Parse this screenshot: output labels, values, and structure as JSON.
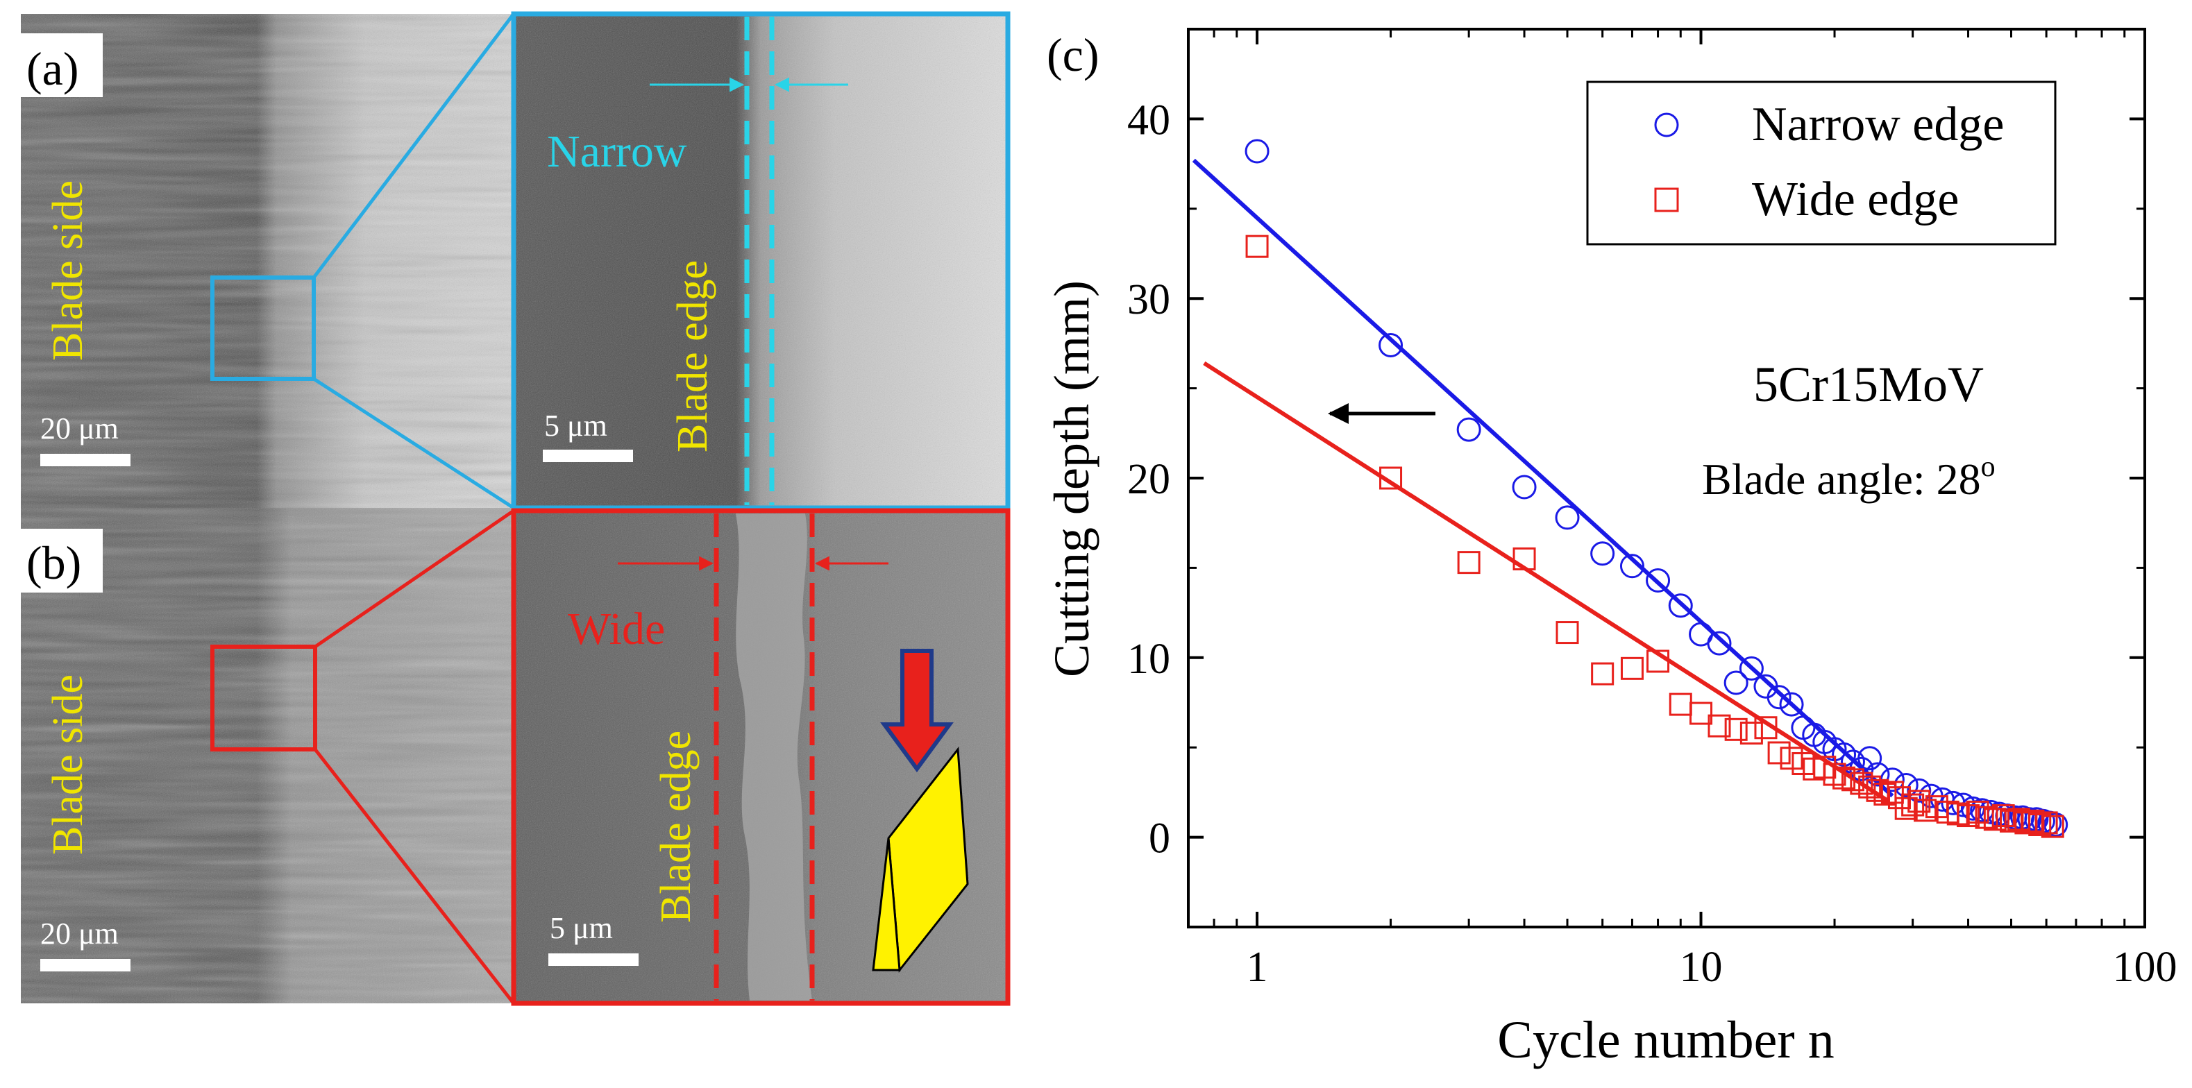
{
  "panels": {
    "a": {
      "label": "(a)",
      "side_label": "Blade side",
      "scale_main": "20 μm",
      "scale_zoom": "5 μm",
      "narrow_label": "Narrow",
      "edge_label": "Blade edge",
      "frame_color": "#29abe2"
    },
    "b": {
      "label": "(b)",
      "side_label": "Blade side",
      "scale_main": "20 μm",
      "scale_zoom": "5 μm",
      "wide_label": "Wide",
      "edge_label": "Blade edge",
      "frame_color": "#e8211c"
    }
  },
  "chart_data": {
    "type": "scatter",
    "panel_label": "(c)",
    "xlabel": "Cycle number n",
    "ylabel": "Cutting depth (mm)",
    "xscale": "log",
    "xlim": [
      0.7,
      100
    ],
    "ylim": [
      -5,
      45
    ],
    "xticks": [
      1,
      10,
      100
    ],
    "xtick_labels": [
      "1",
      "10",
      "100"
    ],
    "yticks": [
      0,
      10,
      20,
      30,
      40
    ],
    "ytick_labels": [
      "0",
      "10",
      "20",
      "30",
      "40"
    ],
    "annotation_material": "5Cr15MoV",
    "annotation_angle": "Blade angle: 28",
    "annotation_angle_sup": "o",
    "legend_position": "top-right",
    "series": [
      {
        "name": "Narrow edge",
        "marker": "circle",
        "color": "#1a1ae6",
        "x": [
          1,
          2,
          3,
          4,
          5,
          6,
          7,
          8,
          9,
          10,
          11,
          12,
          13,
          14,
          15,
          16,
          17,
          18,
          19,
          20,
          21,
          22,
          23,
          24,
          25,
          27,
          29,
          31,
          33,
          35,
          37,
          39,
          41,
          43,
          45,
          47,
          49,
          51,
          53,
          55,
          57,
          59,
          61,
          63
        ],
        "values": [
          38.2,
          27.4,
          22.7,
          19.5,
          17.8,
          15.8,
          15.1,
          14.3,
          12.9,
          11.3,
          10.8,
          8.6,
          9.4,
          8.4,
          7.8,
          7.4,
          6.1,
          5.7,
          5.3,
          4.9,
          4.6,
          4.2,
          3.8,
          4.4,
          3.5,
          3.2,
          2.9,
          2.6,
          2.3,
          2.1,
          1.9,
          1.8,
          1.6,
          1.5,
          1.4,
          1.3,
          1.2,
          1.1,
          1.1,
          1.0,
          1.0,
          0.9,
          0.8,
          0.7
        ]
      },
      {
        "name": "Wide edge",
        "marker": "square",
        "color": "#e8211c",
        "x": [
          1,
          2,
          3,
          4,
          5,
          6,
          7,
          8,
          9,
          10,
          11,
          12,
          13,
          14,
          15,
          16,
          17,
          18,
          19,
          20,
          21,
          22,
          23,
          24,
          25,
          26,
          27,
          28,
          29,
          30,
          31,
          32,
          34,
          36,
          38,
          40,
          42,
          44,
          46,
          48,
          50,
          52,
          54,
          56,
          58,
          60,
          62
        ],
        "values": [
          32.9,
          20.0,
          15.3,
          15.5,
          11.4,
          9.1,
          9.4,
          9.8,
          7.4,
          6.9,
          6.2,
          6.0,
          5.8,
          6.1,
          4.7,
          4.4,
          4.1,
          3.8,
          3.9,
          3.5,
          3.3,
          3.2,
          3.0,
          2.8,
          2.6,
          2.4,
          2.5,
          2.2,
          1.6,
          1.8,
          2.0,
          1.5,
          1.7,
          1.4,
          1.3,
          1.2,
          1.4,
          1.1,
          1.0,
          1.2,
          0.9,
          1.0,
          0.8,
          0.9,
          0.7,
          0.8,
          0.6
        ]
      }
    ],
    "fits": [
      {
        "name": "Narrow edge fit",
        "color": "#1a1ae6",
        "x": [
          0.72,
          27
        ],
        "y": [
          37.7,
          2.3
        ]
      },
      {
        "name": "Wide edge fit",
        "color": "#e8211c",
        "x": [
          0.76,
          26.5
        ],
        "y": [
          26.4,
          2.0
        ]
      }
    ]
  }
}
